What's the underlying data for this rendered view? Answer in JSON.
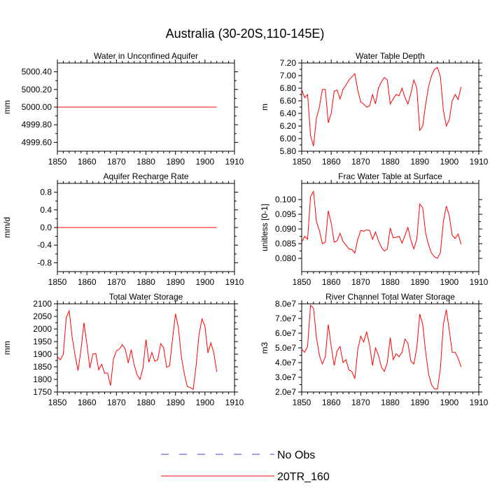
{
  "title": "Australia (30-20S,110-145E)",
  "legend": {
    "items": [
      {
        "label": "No Obs",
        "color": "#4040c0",
        "dash": true
      },
      {
        "label": "20TR_160",
        "color": "#ff0000",
        "dash": false
      }
    ]
  },
  "chart_data": [
    {
      "type": "line",
      "title": "Water in Unconfined Aquifer",
      "ylabel": "mm",
      "xlim": [
        1850,
        1910
      ],
      "ylim": [
        4999.5,
        5000.5
      ],
      "xticks": [
        1850,
        1860,
        1870,
        1880,
        1890,
        1900,
        1910
      ],
      "yticks": [
        4999.6,
        4999.8,
        5000.0,
        5000.2,
        5000.4
      ],
      "ytick_labels": [
        "4999.60",
        "4999.80",
        "5000.00",
        "5000.20",
        "5000.40"
      ],
      "x_start": 1850,
      "series": [
        {
          "name": "20TR_160",
          "color": "#ff0000",
          "values": [
            5000,
            5000,
            5000,
            5000,
            5000,
            5000,
            5000,
            5000,
            5000,
            5000,
            5000,
            5000,
            5000,
            5000,
            5000,
            5000,
            5000,
            5000,
            5000,
            5000,
            5000,
            5000,
            5000,
            5000,
            5000,
            5000,
            5000,
            5000,
            5000,
            5000,
            5000,
            5000,
            5000,
            5000,
            5000,
            5000,
            5000,
            5000,
            5000,
            5000,
            5000,
            5000,
            5000,
            5000,
            5000,
            5000,
            5000,
            5000,
            5000,
            5000,
            5000,
            5000,
            5000,
            5000,
            5000
          ]
        }
      ]
    },
    {
      "type": "line",
      "title": "Water Table Depth",
      "ylabel": "m",
      "xlim": [
        1850,
        1910
      ],
      "ylim": [
        5.8,
        7.2
      ],
      "xticks": [
        1850,
        1860,
        1870,
        1880,
        1890,
        1900,
        1910
      ],
      "yticks": [
        5.8,
        6.0,
        6.2,
        6.4,
        6.6,
        6.8,
        7.0,
        7.2
      ],
      "ytick_labels": [
        "5.80",
        "6.00",
        "6.20",
        "6.40",
        "6.60",
        "6.80",
        "7.00",
        "7.20"
      ],
      "x_start": 1850,
      "series": [
        {
          "name": "20TR_160",
          "color": "#ff0000",
          "values": [
            6.78,
            6.65,
            6.7,
            6.05,
            5.88,
            6.33,
            6.5,
            6.78,
            6.78,
            6.25,
            6.4,
            6.75,
            6.77,
            6.63,
            6.78,
            6.85,
            6.93,
            6.98,
            7.03,
            6.77,
            6.58,
            6.55,
            6.5,
            6.52,
            6.7,
            6.55,
            6.8,
            6.9,
            6.97,
            6.93,
            6.55,
            6.63,
            6.7,
            6.68,
            6.8,
            6.65,
            6.55,
            6.72,
            6.93,
            6.8,
            6.13,
            6.2,
            6.55,
            6.83,
            7.0,
            7.1,
            7.13,
            6.98,
            6.45,
            6.2,
            6.3,
            6.6,
            6.7,
            6.62,
            6.82
          ]
        }
      ]
    },
    {
      "type": "line",
      "title": "Aquifer Recharge Rate",
      "ylabel": "mm/d",
      "xlim": [
        1850,
        1910
      ],
      "ylim": [
        -1.0,
        1.0
      ],
      "xticks": [
        1850,
        1860,
        1870,
        1880,
        1890,
        1900,
        1910
      ],
      "yticks": [
        -0.8,
        -0.4,
        0.0,
        0.4,
        0.8
      ],
      "ytick_labels": [
        "-0.8",
        "-0.4",
        "0.0",
        "0.4",
        "0.8"
      ],
      "x_start": 1850,
      "series": [
        {
          "name": "20TR_160",
          "color": "#ff0000",
          "values": [
            0,
            0,
            0,
            0,
            0,
            0,
            0,
            0,
            0,
            0,
            0,
            0,
            0,
            0,
            0,
            0,
            0,
            0,
            0,
            0,
            0,
            0,
            0,
            0,
            0,
            0,
            0,
            0,
            0,
            0,
            0,
            0,
            0,
            0,
            0,
            0,
            0,
            0,
            0,
            0,
            0,
            0,
            0,
            0,
            0,
            0,
            0,
            0,
            0,
            0,
            0,
            0,
            0,
            0,
            0
          ]
        }
      ]
    },
    {
      "type": "line",
      "title": "Frac Water Table at Surface",
      "ylabel": "unitless [0-1]",
      "xlim": [
        1850,
        1910
      ],
      "ylim": [
        0.0755,
        0.1055
      ],
      "xticks": [
        1850,
        1860,
        1870,
        1880,
        1890,
        1900,
        1910
      ],
      "yticks": [
        0.08,
        0.085,
        0.09,
        0.095,
        0.1
      ],
      "ytick_labels": [
        "0.080",
        "0.085",
        "0.090",
        "0.095",
        "0.100"
      ],
      "x_start": 1850,
      "series": [
        {
          "name": "20TR_160",
          "color": "#ff0000",
          "values": [
            0.0855,
            0.0875,
            0.0865,
            0.101,
            0.1028,
            0.0925,
            0.0895,
            0.085,
            0.0855,
            0.0962,
            0.092,
            0.0855,
            0.086,
            0.0885,
            0.0858,
            0.0845,
            0.0832,
            0.083,
            0.0818,
            0.0865,
            0.0895,
            0.0892,
            0.0897,
            0.0895,
            0.0865,
            0.089,
            0.086,
            0.0838,
            0.0825,
            0.0832,
            0.0903,
            0.087,
            0.0872,
            0.0875,
            0.0852,
            0.0878,
            0.0905,
            0.0862,
            0.0832,
            0.0865,
            0.0985,
            0.0972,
            0.0885,
            0.0845,
            0.0818,
            0.0805,
            0.08,
            0.082,
            0.0925,
            0.0978,
            0.0945,
            0.0878,
            0.0868,
            0.0883,
            0.0848
          ]
        }
      ]
    },
    {
      "type": "line",
      "title": "Total Water Storage",
      "ylabel": "mm",
      "xlim": [
        1850,
        1910
      ],
      "ylim": [
        1750,
        2100
      ],
      "xticks": [
        1850,
        1860,
        1870,
        1880,
        1890,
        1900,
        1910
      ],
      "yticks": [
        1750,
        1800,
        1850,
        1900,
        1950,
        2000,
        2050,
        2100
      ],
      "ytick_labels": [
        "1750",
        "1800",
        "1850",
        "1900",
        "1950",
        "2000",
        "2050",
        "2100"
      ],
      "x_start": 1850,
      "series": [
        {
          "name": "20TR_160",
          "color": "#ff0000",
          "values": [
            1890,
            1878,
            1900,
            2045,
            2072,
            1968,
            1895,
            1835,
            1918,
            2025,
            1940,
            1845,
            1900,
            1903,
            1838,
            1860,
            1825,
            1825,
            1775,
            1882,
            1913,
            1920,
            1938,
            1920,
            1865,
            1918,
            1858,
            1818,
            1800,
            1845,
            1958,
            1868,
            1907,
            1872,
            1878,
            1942,
            1925,
            1848,
            1853,
            1960,
            2060,
            2005,
            1890,
            1822,
            1772,
            1768,
            1760,
            1855,
            1980,
            2040,
            2010,
            1905,
            1945,
            1905,
            1830
          ]
        }
      ]
    },
    {
      "type": "line",
      "title": "River Channel Total Water Storage",
      "ylabel": "m3",
      "xlim": [
        1850,
        1910
      ],
      "ylim": [
        20000000,
        80000000
      ],
      "xticks": [
        1850,
        1860,
        1870,
        1880,
        1890,
        1900,
        1910
      ],
      "yticks": [
        20000000,
        30000000,
        40000000,
        50000000,
        60000000,
        70000000,
        80000000
      ],
      "ytick_labels": [
        "2.0e7",
        "3.0e7",
        "4.0e7",
        "5.0e7",
        "6.0e7",
        "7.0e7",
        "8.0e7"
      ],
      "x_start": 1850,
      "series": [
        {
          "name": "20TR_160",
          "color": "#ff0000",
          "values": [
            49000000,
            47000000,
            51000000,
            79000000,
            77000000,
            57000000,
            45000000,
            39000000,
            44000000,
            66000000,
            51000000,
            38000000,
            48000000,
            51000000,
            40000000,
            42000000,
            35000000,
            34000000,
            29000000,
            49000000,
            58000000,
            54000000,
            61000000,
            52000000,
            38000000,
            50000000,
            45000000,
            37000000,
            34000000,
            40000000,
            57000000,
            42000000,
            46000000,
            44000000,
            47000000,
            56000000,
            53000000,
            41000000,
            39000000,
            50000000,
            73000000,
            66000000,
            47000000,
            32000000,
            25000000,
            22000000,
            22000000,
            36000000,
            66000000,
            76000000,
            62000000,
            47000000,
            47000000,
            43000000,
            37000000
          ]
        }
      ]
    }
  ]
}
